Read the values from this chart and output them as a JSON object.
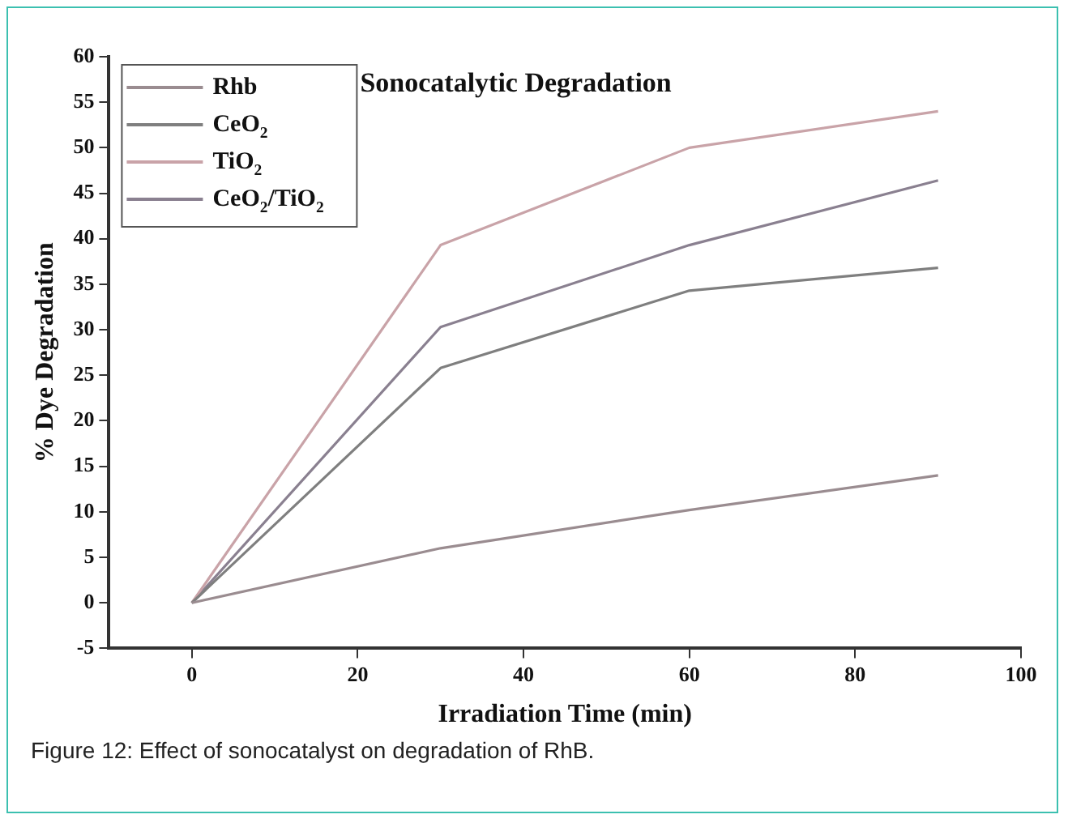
{
  "chart_data": {
    "type": "line",
    "title": "Sonocatalytic Degradation",
    "xlabel": "Irradiation Time (min)",
    "ylabel": "% Dye Degradation",
    "x": [
      0,
      30,
      60,
      90
    ],
    "series": [
      {
        "name": "Rhb",
        "color": "#9a8c90",
        "values": [
          0,
          6,
          10.2,
          14
        ]
      },
      {
        "name": "CeO$_{2}$",
        "color": "#7f7f7f",
        "values": [
          0,
          25.8,
          34.3,
          36.8
        ]
      },
      {
        "name": "TiO$_{2}$",
        "color": "#c9a3a8",
        "values": [
          0,
          39.3,
          50,
          54
        ]
      },
      {
        "name": "CeO$_{2}$/TiO$_{2}$",
        "color": "#8a8090",
        "values": [
          0,
          30.3,
          39.3,
          46.4
        ]
      }
    ],
    "xlim": [
      -10,
      100
    ],
    "xticks": [
      0,
      20,
      40,
      60,
      80,
      100
    ],
    "ylim": [
      -5,
      60
    ],
    "yticks": [
      -5,
      0,
      5,
      10,
      15,
      20,
      25,
      30,
      35,
      40,
      45,
      50,
      55,
      60
    ],
    "grid": false,
    "legend": "top left",
    "marker": "none",
    "line_style": "solid",
    "annotations": [
      "Figure 12: Effect of sonocatalyst on degradation of RhB."
    ]
  }
}
